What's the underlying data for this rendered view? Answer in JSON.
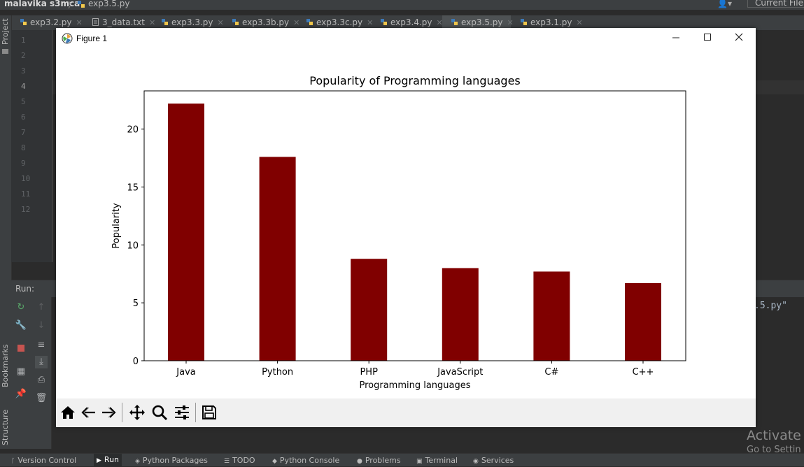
{
  "ide": {
    "project_name": "malavika s3mca",
    "current_file": "exp3.5.py",
    "run_config": "Current File",
    "tabs": [
      {
        "label": "exp3.2.py",
        "kind": "py"
      },
      {
        "label": "3_data.txt",
        "kind": "txt"
      },
      {
        "label": "exp3.3.py",
        "kind": "py"
      },
      {
        "label": "exp3.3b.py",
        "kind": "py"
      },
      {
        "label": "exp3.3c.py",
        "kind": "py"
      },
      {
        "label": "exp3.4.py",
        "kind": "py"
      },
      {
        "label": "exp3.5.py",
        "kind": "py",
        "active": true
      },
      {
        "label": "exp3.1.py",
        "kind": "py"
      }
    ],
    "line_numbers": [
      "1",
      "2",
      "3",
      "4",
      "5",
      "6",
      "7",
      "8",
      "9",
      "10",
      "11",
      "12"
    ],
    "side_labels": {
      "project": "Project",
      "bookmarks": "Bookmarks",
      "structure": "Structure"
    },
    "run_label": "Run:",
    "console_text": ".5.py\"",
    "watermark": {
      "line1": "Activate W",
      "line2": "Go to Settin"
    },
    "status_bar": [
      "Version Control",
      "Run",
      "Python Packages",
      "TODO",
      "Python Console",
      "Problems",
      "Terminal",
      "Services"
    ],
    "accent": "#4e5254"
  },
  "figure": {
    "window_title": "Figure 1",
    "controls": {
      "minimize": "minimize",
      "maximize": "maximize",
      "close": "close"
    },
    "toolbar_icons": [
      "home-icon",
      "back-icon",
      "forward-icon",
      "pan-icon",
      "zoom-icon",
      "configure-icon",
      "save-icon"
    ]
  },
  "chart_data": {
    "type": "bar",
    "title": "Popularity of Programming languages",
    "xlabel": "Programming languages",
    "ylabel": "Popularity",
    "categories": [
      "Java",
      "Python",
      "PHP",
      "JavaScript",
      "C#",
      "C++"
    ],
    "values": [
      22.2,
      17.6,
      8.8,
      8.0,
      7.7,
      6.7
    ],
    "ylim": [
      0,
      23.3
    ],
    "yticks": [
      0,
      5,
      10,
      15,
      20
    ],
    "bar_color": "#800000",
    "grid": false
  }
}
